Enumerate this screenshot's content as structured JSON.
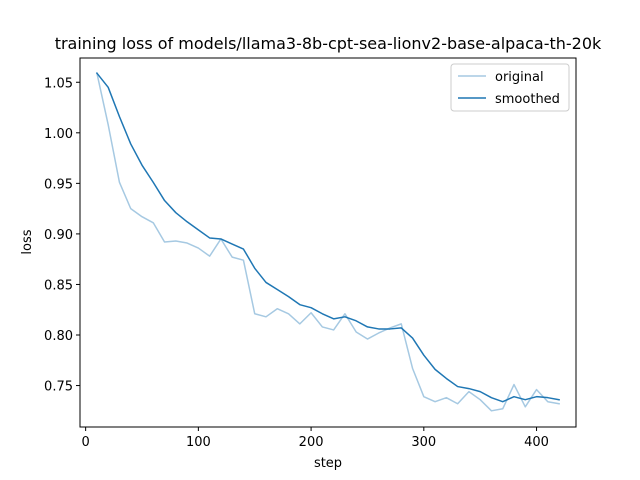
{
  "chart_data": {
    "type": "line",
    "title": "training loss of models/llama3-8b-cpt-sea-lionv2-base-alpaca-th-20k",
    "xlabel": "step",
    "ylabel": "loss",
    "xlim": [
      -5,
      435
    ],
    "ylim": [
      0.709,
      1.074
    ],
    "xticks": [
      0,
      100,
      200,
      300,
      400
    ],
    "xtick_labels": [
      "0",
      "100",
      "200",
      "300",
      "400"
    ],
    "yticks": [
      0.75,
      0.8,
      0.85,
      0.9,
      0.95,
      1.0,
      1.05
    ],
    "ytick_labels": [
      "0.75",
      "0.80",
      "0.85",
      "0.90",
      "0.95",
      "1.00",
      "1.05"
    ],
    "grid": false,
    "legend_position": "top-right",
    "x": [
      10,
      20,
      30,
      40,
      50,
      60,
      70,
      80,
      90,
      100,
      110,
      120,
      130,
      140,
      150,
      160,
      170,
      180,
      190,
      200,
      210,
      220,
      230,
      240,
      250,
      260,
      270,
      280,
      290,
      300,
      310,
      320,
      330,
      340,
      350,
      360,
      370,
      380,
      390,
      400,
      410,
      420
    ],
    "series": [
      {
        "name": "original",
        "color": "#a6c9e2",
        "values": [
          1.059,
          1.008,
          0.951,
          0.925,
          0.917,
          0.911,
          0.892,
          0.893,
          0.891,
          0.886,
          0.878,
          0.895,
          0.877,
          0.874,
          0.821,
          0.818,
          0.826,
          0.821,
          0.811,
          0.822,
          0.808,
          0.805,
          0.821,
          0.803,
          0.796,
          0.802,
          0.807,
          0.811,
          0.767,
          0.739,
          0.734,
          0.738,
          0.732,
          0.744,
          0.736,
          0.725,
          0.727,
          0.751,
          0.729,
          0.746,
          0.734,
          0.732
        ]
      },
      {
        "name": "smoothed",
        "color": "#1f77b4",
        "values": [
          1.059,
          1.045,
          1.016,
          0.989,
          0.968,
          0.951,
          0.933,
          0.921,
          0.912,
          0.904,
          0.896,
          0.895,
          0.89,
          0.885,
          0.866,
          0.852,
          0.845,
          0.838,
          0.83,
          0.827,
          0.821,
          0.816,
          0.818,
          0.814,
          0.808,
          0.806,
          0.806,
          0.807,
          0.797,
          0.78,
          0.766,
          0.757,
          0.749,
          0.747,
          0.744,
          0.738,
          0.734,
          0.739,
          0.736,
          0.739,
          0.738,
          0.736
        ]
      }
    ]
  }
}
